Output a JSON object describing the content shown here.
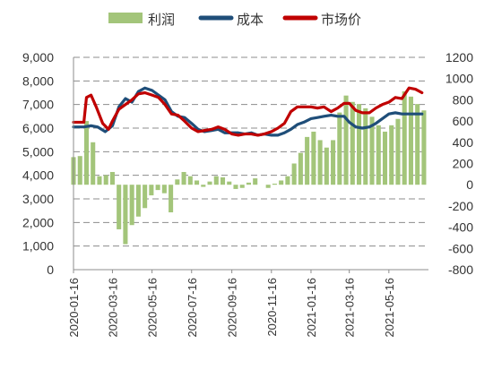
{
  "chart_data": {
    "type": "bar+line",
    "legend_position": "top",
    "grid": "horizontal dashed",
    "left_axis": {
      "min": 0,
      "max": 9000,
      "ticks": [
        "0",
        "1,000",
        "2,000",
        "3,000",
        "4,000",
        "5,000",
        "6,000",
        "7,000",
        "8,000",
        "9,000"
      ]
    },
    "right_axis": {
      "min": -800,
      "max": 1200,
      "ticks": [
        "-800",
        "-600",
        "-400",
        "-200",
        "0",
        "200",
        "400",
        "600",
        "800",
        "1000",
        "1200"
      ]
    },
    "x_range": [
      "2020-01-16",
      "2021-07-16"
    ],
    "x_ticks": [
      "2020-01-16",
      "2020-03-16",
      "2020-05-16",
      "2020-07-16",
      "2020-09-16",
      "2020-11-16",
      "2021-01-16",
      "2021-03-16",
      "2021-05-16"
    ],
    "series": [
      {
        "name": "利润",
        "type": "bar",
        "axis": "right",
        "color": "#a3c57a",
        "points": [
          [
            "2020-01-16",
            260
          ],
          [
            "2020-01-26",
            270
          ],
          [
            "2020-02-05",
            600
          ],
          [
            "2020-02-15",
            400
          ],
          [
            "2020-02-25",
            80
          ],
          [
            "2020-03-06",
            90
          ],
          [
            "2020-03-16",
            120
          ],
          [
            "2020-03-26",
            -420
          ],
          [
            "2020-04-05",
            -560
          ],
          [
            "2020-04-15",
            -380
          ],
          [
            "2020-04-25",
            -300
          ],
          [
            "2020-05-05",
            -220
          ],
          [
            "2020-05-15",
            -100
          ],
          [
            "2020-05-25",
            -50
          ],
          [
            "2020-06-04",
            -80
          ],
          [
            "2020-06-14",
            -260
          ],
          [
            "2020-06-24",
            50
          ],
          [
            "2020-07-04",
            120
          ],
          [
            "2020-07-14",
            80
          ],
          [
            "2020-07-24",
            40
          ],
          [
            "2020-08-03",
            -20
          ],
          [
            "2020-08-13",
            30
          ],
          [
            "2020-08-23",
            80
          ],
          [
            "2020-09-02",
            70
          ],
          [
            "2020-09-12",
            30
          ],
          [
            "2020-09-22",
            -40
          ],
          [
            "2020-10-02",
            -30
          ],
          [
            "2020-10-12",
            20
          ],
          [
            "2020-10-22",
            60
          ],
          [
            "2020-11-01",
            0
          ],
          [
            "2020-11-11",
            -30
          ],
          [
            "2020-11-21",
            10
          ],
          [
            "2020-12-01",
            40
          ],
          [
            "2020-12-11",
            80
          ],
          [
            "2020-12-21",
            200
          ],
          [
            "2020-12-31",
            300
          ],
          [
            "2021-01-10",
            450
          ],
          [
            "2021-01-20",
            500
          ],
          [
            "2021-01-30",
            420
          ],
          [
            "2021-02-09",
            350
          ],
          [
            "2021-02-19",
            420
          ],
          [
            "2021-03-01",
            680
          ],
          [
            "2021-03-11",
            840
          ],
          [
            "2021-03-21",
            780
          ],
          [
            "2021-03-31",
            760
          ],
          [
            "2021-04-10",
            720
          ],
          [
            "2021-04-20",
            640
          ],
          [
            "2021-04-30",
            560
          ],
          [
            "2021-05-10",
            500
          ],
          [
            "2021-05-20",
            560
          ],
          [
            "2021-05-30",
            620
          ],
          [
            "2021-06-09",
            880
          ],
          [
            "2021-06-19",
            830
          ],
          [
            "2021-06-29",
            760
          ],
          [
            "2021-07-09",
            700
          ]
        ]
      },
      {
        "name": "成本",
        "type": "line",
        "axis": "left",
        "color": "#1f4e79",
        "points": [
          [
            "2020-01-16",
            6050
          ],
          [
            "2020-02-01",
            6050
          ],
          [
            "2020-02-12",
            6100
          ],
          [
            "2020-02-22",
            6050
          ],
          [
            "2020-03-05",
            5850
          ],
          [
            "2020-03-16",
            6100
          ],
          [
            "2020-03-26",
            6900
          ],
          [
            "2020-04-05",
            7250
          ],
          [
            "2020-04-15",
            7100
          ],
          [
            "2020-04-25",
            7550
          ],
          [
            "2020-05-05",
            7700
          ],
          [
            "2020-05-16",
            7600
          ],
          [
            "2020-05-26",
            7400
          ],
          [
            "2020-06-05",
            7200
          ],
          [
            "2020-06-15",
            6700
          ],
          [
            "2020-06-25",
            6500
          ],
          [
            "2020-07-05",
            6450
          ],
          [
            "2020-07-16",
            6200
          ],
          [
            "2020-07-26",
            5950
          ],
          [
            "2020-08-05",
            5850
          ],
          [
            "2020-08-16",
            5900
          ],
          [
            "2020-08-26",
            5950
          ],
          [
            "2020-09-05",
            5800
          ],
          [
            "2020-09-16",
            5800
          ],
          [
            "2020-09-26",
            5800
          ],
          [
            "2020-10-06",
            5750
          ],
          [
            "2020-10-16",
            5800
          ],
          [
            "2020-10-26",
            5700
          ],
          [
            "2020-11-05",
            5750
          ],
          [
            "2020-11-16",
            5700
          ],
          [
            "2020-11-26",
            5700
          ],
          [
            "2020-12-06",
            5800
          ],
          [
            "2020-12-16",
            5950
          ],
          [
            "2020-12-26",
            6150
          ],
          [
            "2021-01-05",
            6250
          ],
          [
            "2021-01-16",
            6400
          ],
          [
            "2021-01-26",
            6450
          ],
          [
            "2021-02-05",
            6500
          ],
          [
            "2021-02-16",
            6550
          ],
          [
            "2021-02-26",
            6500
          ],
          [
            "2021-03-08",
            6500
          ],
          [
            "2021-03-16",
            6250
          ],
          [
            "2021-03-26",
            6050
          ],
          [
            "2021-04-05",
            6000
          ],
          [
            "2021-04-16",
            6050
          ],
          [
            "2021-04-26",
            6200
          ],
          [
            "2021-05-06",
            6400
          ],
          [
            "2021-05-16",
            6600
          ],
          [
            "2021-05-26",
            6650
          ],
          [
            "2021-06-05",
            6600
          ],
          [
            "2021-06-16",
            6600
          ],
          [
            "2021-06-26",
            6600
          ],
          [
            "2021-07-06",
            6600
          ]
        ]
      },
      {
        "name": "市场价",
        "type": "line",
        "axis": "left",
        "color": "#c00000",
        "points": [
          [
            "2020-01-16",
            6250
          ],
          [
            "2020-02-01",
            6250
          ],
          [
            "2020-02-05",
            7300
          ],
          [
            "2020-02-12",
            7400
          ],
          [
            "2020-02-20",
            6900
          ],
          [
            "2020-03-01",
            6200
          ],
          [
            "2020-03-10",
            5950
          ],
          [
            "2020-03-16",
            6300
          ],
          [
            "2020-03-26",
            6800
          ],
          [
            "2020-04-05",
            7000
          ],
          [
            "2020-04-15",
            7200
          ],
          [
            "2020-04-25",
            7450
          ],
          [
            "2020-05-05",
            7500
          ],
          [
            "2020-05-16",
            7400
          ],
          [
            "2020-05-26",
            7300
          ],
          [
            "2020-06-05",
            7000
          ],
          [
            "2020-06-15",
            6600
          ],
          [
            "2020-06-25",
            6550
          ],
          [
            "2020-07-05",
            6300
          ],
          [
            "2020-07-16",
            6000
          ],
          [
            "2020-07-26",
            5850
          ],
          [
            "2020-08-05",
            5900
          ],
          [
            "2020-08-16",
            5950
          ],
          [
            "2020-08-26",
            6050
          ],
          [
            "2020-09-05",
            5950
          ],
          [
            "2020-09-16",
            5750
          ],
          [
            "2020-09-26",
            5700
          ],
          [
            "2020-10-06",
            5750
          ],
          [
            "2020-10-16",
            5750
          ],
          [
            "2020-10-26",
            5700
          ],
          [
            "2020-11-05",
            5750
          ],
          [
            "2020-11-16",
            5850
          ],
          [
            "2020-11-26",
            6000
          ],
          [
            "2020-12-06",
            6200
          ],
          [
            "2020-12-16",
            6700
          ],
          [
            "2020-12-26",
            6900
          ],
          [
            "2021-01-05",
            6900
          ],
          [
            "2021-01-16",
            6900
          ],
          [
            "2021-01-26",
            6850
          ],
          [
            "2021-02-05",
            6900
          ],
          [
            "2021-02-16",
            6700
          ],
          [
            "2021-02-26",
            6850
          ],
          [
            "2021-03-08",
            7050
          ],
          [
            "2021-03-16",
            7050
          ],
          [
            "2021-03-26",
            6750
          ],
          [
            "2021-04-05",
            6650
          ],
          [
            "2021-04-16",
            6650
          ],
          [
            "2021-04-26",
            6850
          ],
          [
            "2021-05-06",
            7000
          ],
          [
            "2021-05-16",
            7100
          ],
          [
            "2021-05-26",
            7300
          ],
          [
            "2021-06-05",
            7250
          ],
          [
            "2021-06-16",
            7700
          ],
          [
            "2021-06-26",
            7650
          ],
          [
            "2021-07-06",
            7500
          ]
        ]
      }
    ]
  }
}
